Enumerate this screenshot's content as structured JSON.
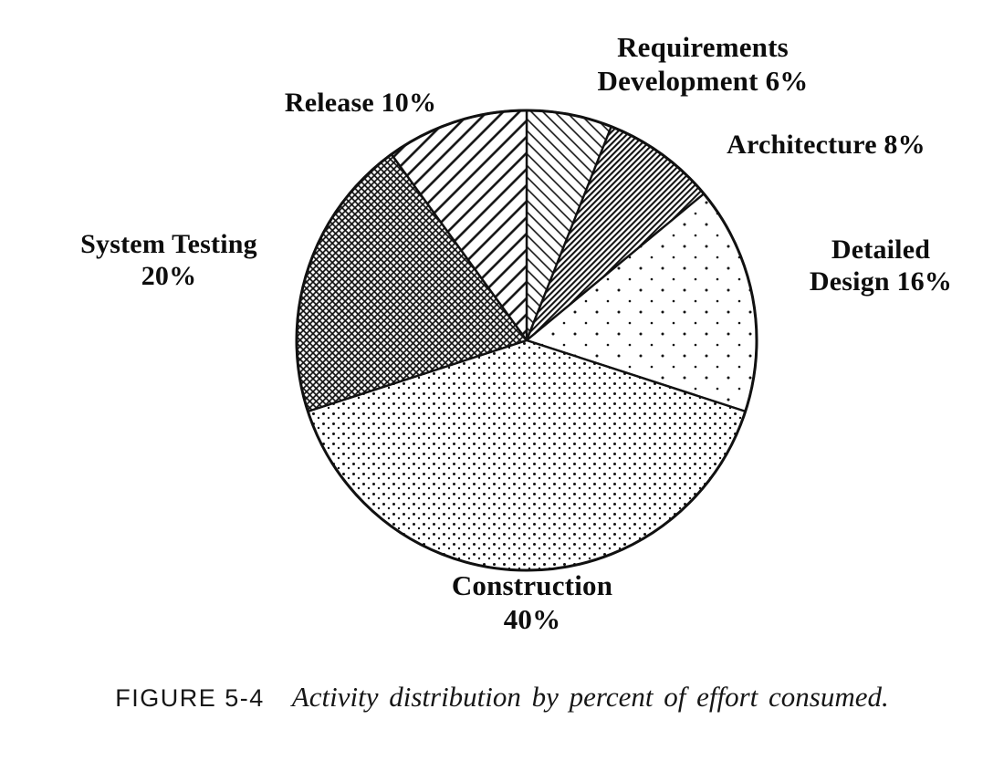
{
  "chart_data": {
    "type": "pie",
    "title": "Activity distribution by percent of effort consumed",
    "unit": "%",
    "total": 100,
    "start_angle_deg": -90,
    "direction": "clockwise",
    "legend_position": "around-slices",
    "slices": [
      {
        "name": "Requirements Development",
        "value": 6,
        "pattern": "diagonal-thin",
        "label_lines": [
          "Requirements",
          "Development 6%"
        ]
      },
      {
        "name": "Architecture",
        "value": 8,
        "pattern": "diagonal-dense",
        "label_lines": [
          "Architecture 8%"
        ]
      },
      {
        "name": "Detailed Design",
        "value": 16,
        "pattern": "dots-sparse",
        "label_lines": [
          "Detailed",
          "Design 16%"
        ]
      },
      {
        "name": "Construction",
        "value": 40,
        "pattern": "dots-medium",
        "label_lines": [
          "Construction",
          "40%"
        ]
      },
      {
        "name": "System Testing",
        "value": 20,
        "pattern": "crosshatch-dark",
        "label_lines": [
          "System Testing",
          "20%"
        ]
      },
      {
        "name": "Release",
        "value": 10,
        "pattern": "stripes-wide",
        "label_lines": [
          "Release 10%"
        ]
      }
    ],
    "caption": {
      "figure_label": "FIGURE 5-4",
      "text": "Activity distribution by percent of effort consumed."
    },
    "colors": {
      "ink": "#111111",
      "background": "#ffffff"
    }
  }
}
